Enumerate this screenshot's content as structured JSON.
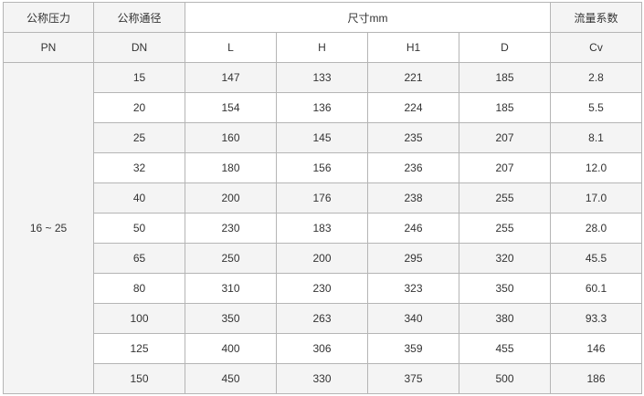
{
  "header": {
    "pressure_label": "公称压力",
    "pressure_unit": "PN",
    "diameter_label": "公称通径",
    "diameter_unit": "DN",
    "dimensions_label": "尺寸mm",
    "dim_columns": [
      "L",
      "H",
      "H1",
      "D"
    ],
    "flow_label": "流量系数",
    "flow_unit": "Cv"
  },
  "pressure_value": "16 ~ 25",
  "rows": [
    [
      "15",
      "147",
      "133",
      "221",
      "185",
      "2.8"
    ],
    [
      "20",
      "154",
      "136",
      "224",
      "185",
      "5.5"
    ],
    [
      "25",
      "160",
      "145",
      "235",
      "207",
      "8.1"
    ],
    [
      "32",
      "180",
      "156",
      "236",
      "207",
      "12.0"
    ],
    [
      "40",
      "200",
      "176",
      "238",
      "255",
      "17.0"
    ],
    [
      "50",
      "230",
      "183",
      "246",
      "255",
      "28.0"
    ],
    [
      "65",
      "250",
      "200",
      "295",
      "320",
      "45.5"
    ],
    [
      "80",
      "310",
      "230",
      "323",
      "350",
      "60.1"
    ],
    [
      "100",
      "350",
      "263",
      "340",
      "380",
      "93.3"
    ],
    [
      "125",
      "400",
      "306",
      "359",
      "455",
      "146"
    ],
    [
      "150",
      "450",
      "330",
      "375",
      "500",
      "186"
    ]
  ],
  "colors": {
    "shaded": "#f4f4f4",
    "border": "#b5b5b5",
    "text": "#333333"
  }
}
